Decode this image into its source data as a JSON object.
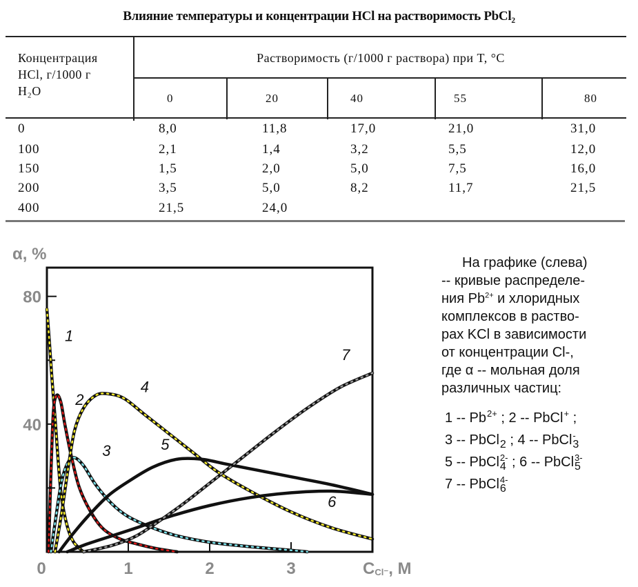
{
  "table": {
    "title": "Влияние температуры и концентрации HCl на растворимость PbCl₂",
    "row_header": [
      "Концентрация",
      "HCl, г/1000 г",
      "H₂O"
    ],
    "group_header": "Растворимость (г/1000 г раствора) при T, °C",
    "temperatures": [
      "0",
      "20",
      "40",
      "55",
      "80"
    ],
    "rows": [
      {
        "conc": "0",
        "values": [
          "8,0",
          "11,8",
          "17,0",
          "21,0",
          "31,0"
        ]
      },
      {
        "conc": "100",
        "values": [
          "2,1",
          "1,4",
          "3,2",
          "5,5",
          "12,0"
        ]
      },
      {
        "conc": "150",
        "values": [
          "1,5",
          "2,0",
          "5,0",
          "7,5",
          "16,0"
        ]
      },
      {
        "conc": "200",
        "values": [
          "3,5",
          "5,0",
          "8,2",
          "11,7",
          "21,5"
        ]
      },
      {
        "conc": "400",
        "values": [
          "21,5",
          "24,0",
          "",
          "",
          ""
        ]
      }
    ]
  },
  "chart_data": {
    "type": "line",
    "ylabel": "α, %",
    "xlabel": "C",
    "xlabel_sub": "Cl⁻",
    "xlabel_unit": ", M",
    "xlim": [
      0,
      4
    ],
    "ylim": [
      0,
      89
    ],
    "xticks": [
      "0",
      "1",
      "2",
      "3"
    ],
    "yticks": [
      {
        "v": 80,
        "label": "80"
      },
      {
        "v": 40,
        "label": "40"
      }
    ],
    "minor_yticks": [
      20,
      60
    ],
    "series": [
      {
        "name": "1",
        "dot": "#f5ea2a",
        "label_at": [
          0.22,
          66
        ],
        "points": [
          [
            0,
            76
          ],
          [
            0.03,
            66
          ],
          [
            0.06,
            55
          ],
          [
            0.1,
            42
          ],
          [
            0.14,
            28
          ],
          [
            0.18,
            17
          ],
          [
            0.25,
            8
          ],
          [
            0.33,
            3
          ],
          [
            0.45,
            0
          ]
        ]
      },
      {
        "name": "2",
        "dot": "#e01a1a",
        "label_at": [
          0.35,
          46
        ],
        "points": [
          [
            0.02,
            0
          ],
          [
            0.05,
            25
          ],
          [
            0.08,
            44
          ],
          [
            0.12,
            49
          ],
          [
            0.17,
            47
          ],
          [
            0.22,
            40
          ],
          [
            0.3,
            30
          ],
          [
            0.4,
            20
          ],
          [
            0.55,
            12
          ],
          [
            0.7,
            7
          ],
          [
            0.9,
            4
          ],
          [
            1.1,
            2.5
          ],
          [
            1.35,
            1
          ],
          [
            1.6,
            0
          ]
        ]
      },
      {
        "name": "3",
        "dot": "#7fe6ef",
        "label_at": [
          0.68,
          30
        ],
        "points": [
          [
            0.05,
            0
          ],
          [
            0.1,
            9
          ],
          [
            0.18,
            22
          ],
          [
            0.26,
            28
          ],
          [
            0.34,
            29.5
          ],
          [
            0.45,
            27
          ],
          [
            0.6,
            21
          ],
          [
            0.8,
            15
          ],
          [
            1.0,
            11
          ],
          [
            1.3,
            7.5
          ],
          [
            1.6,
            5
          ],
          [
            2.0,
            3
          ],
          [
            2.5,
            1.6
          ],
          [
            3.0,
            0.5
          ],
          [
            3.2,
            0
          ]
        ]
      },
      {
        "name": "4",
        "dot": "#f5ea2a",
        "label_at": [
          1.15,
          50
        ],
        "points": [
          [
            0.1,
            0
          ],
          [
            0.18,
            12
          ],
          [
            0.26,
            26
          ],
          [
            0.34,
            38
          ],
          [
            0.45,
            45
          ],
          [
            0.6,
            49
          ],
          [
            0.75,
            49.5
          ],
          [
            0.95,
            48
          ],
          [
            1.2,
            43
          ],
          [
            1.5,
            37
          ],
          [
            1.8,
            31
          ],
          [
            2.1,
            25
          ],
          [
            2.5,
            19
          ],
          [
            3.0,
            12.5
          ],
          [
            3.5,
            7.5
          ],
          [
            4.0,
            4
          ]
        ]
      },
      {
        "name": "5",
        "dot": "",
        "label_at": [
          1.4,
          32
        ],
        "points": [
          [
            0.15,
            0
          ],
          [
            0.3,
            5
          ],
          [
            0.5,
            11
          ],
          [
            0.75,
            17.5
          ],
          [
            1.0,
            22
          ],
          [
            1.3,
            26.5
          ],
          [
            1.6,
            29
          ],
          [
            1.9,
            29
          ],
          [
            2.2,
            27.5
          ],
          [
            2.6,
            25.5
          ],
          [
            3.0,
            23.5
          ],
          [
            3.5,
            21
          ],
          [
            4.0,
            18
          ]
        ]
      },
      {
        "name": "6",
        "dot": "",
        "label_at": [
          3.45,
          14
        ],
        "points": [
          [
            0.25,
            0
          ],
          [
            0.5,
            2.5
          ],
          [
            0.8,
            5
          ],
          [
            1.1,
            7.5
          ],
          [
            1.5,
            11
          ],
          [
            2.0,
            14.5
          ],
          [
            2.5,
            17
          ],
          [
            3.0,
            18.5
          ],
          [
            3.5,
            19
          ],
          [
            4.0,
            18
          ]
        ]
      },
      {
        "name": "7",
        "dot": "#9a9a9a",
        "label_at": [
          3.62,
          60
        ],
        "points": [
          [
            0.45,
            0
          ],
          [
            0.8,
            2
          ],
          [
            1.1,
            5
          ],
          [
            1.4,
            10
          ],
          [
            1.7,
            15.5
          ],
          [
            2.0,
            21.5
          ],
          [
            2.4,
            29.5
          ],
          [
            2.8,
            37.5
          ],
          [
            3.2,
            45
          ],
          [
            3.6,
            51.5
          ],
          [
            4.0,
            56
          ]
        ]
      }
    ]
  },
  "note": {
    "lines": [
      "На графике (слева)",
      "-- кривые распределе-",
      "ния Pb",
      "2+",
      " и  хлоридных",
      "комплексов в раство-",
      "рах KCl в зависимости",
      "от концентрации Cl-,",
      "где α -- мольная доля",
      "различных частиц:"
    ]
  },
  "legend": [
    [
      {
        "n": "1",
        "base": "Pb",
        "sub": "",
        "sup": "2+"
      },
      {
        "n": "2",
        "base": "PbCl",
        "sub": "",
        "sup": "+"
      }
    ],
    [
      {
        "n": "3",
        "base": "PbCl",
        "sub": "2",
        "sup": ""
      },
      {
        "n": "4",
        "base": "PbCl",
        "sub": "3",
        "sup": "-"
      }
    ],
    [
      {
        "n": "5",
        "base": "PbCl",
        "sub": "4",
        "sup": "2-"
      },
      {
        "n": "6",
        "base": "PbCl",
        "sub": "5",
        "sup": "3-"
      }
    ],
    [
      {
        "n": "7",
        "base": "PbCl",
        "sub": "6",
        "sup": "4-"
      }
    ]
  ],
  "legend_sep": " -- "
}
